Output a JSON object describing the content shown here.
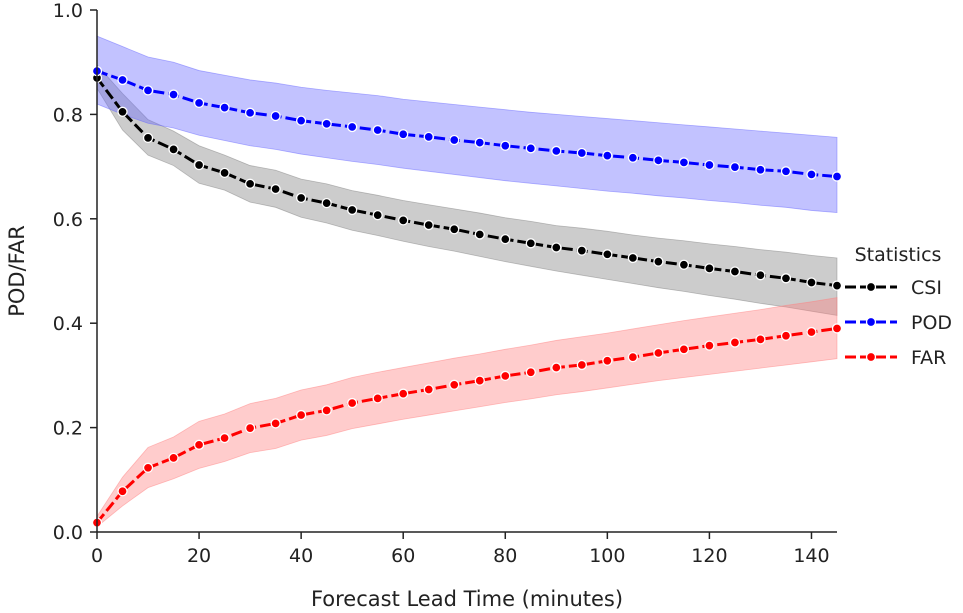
{
  "chart_data": {
    "type": "line",
    "title": "",
    "xlabel": "Forecast Lead Time (minutes)",
    "ylabel": "POD/FAR",
    "xlim": [
      0,
      145
    ],
    "ylim": [
      0.0,
      1.0
    ],
    "xticks": [
      0,
      20,
      40,
      60,
      80,
      100,
      120,
      140
    ],
    "yticks": [
      0.0,
      0.2,
      0.4,
      0.6,
      0.8,
      1.0
    ],
    "ytick_labels": [
      "0.0",
      "0.2",
      "0.4",
      "0.6",
      "0.8",
      "1.0"
    ],
    "grid": false,
    "legend": {
      "title": "Statistics",
      "placement": "right"
    },
    "x": [
      0,
      5,
      10,
      15,
      20,
      25,
      30,
      35,
      40,
      45,
      50,
      55,
      60,
      65,
      70,
      75,
      80,
      85,
      90,
      95,
      100,
      105,
      110,
      115,
      120,
      125,
      130,
      135,
      140,
      145
    ],
    "series": [
      {
        "name": "CSI",
        "color": "#000000",
        "band_color": "#808080",
        "values": [
          0.87,
          0.805,
          0.755,
          0.733,
          0.703,
          0.688,
          0.667,
          0.657,
          0.64,
          0.63,
          0.617,
          0.607,
          0.597,
          0.588,
          0.58,
          0.57,
          0.561,
          0.553,
          0.545,
          0.539,
          0.532,
          0.525,
          0.518,
          0.512,
          0.505,
          0.499,
          0.492,
          0.486,
          0.478,
          0.472
        ],
        "lower": [
          0.85,
          0.77,
          0.722,
          0.702,
          0.668,
          0.655,
          0.632,
          0.622,
          0.603,
          0.592,
          0.578,
          0.568,
          0.557,
          0.547,
          0.538,
          0.528,
          0.518,
          0.509,
          0.5,
          0.492,
          0.484,
          0.476,
          0.468,
          0.461,
          0.453,
          0.446,
          0.438,
          0.431,
          0.423,
          0.415
        ],
        "upper": [
          0.895,
          0.84,
          0.79,
          0.768,
          0.74,
          0.722,
          0.702,
          0.693,
          0.676,
          0.667,
          0.654,
          0.645,
          0.635,
          0.627,
          0.619,
          0.611,
          0.602,
          0.595,
          0.587,
          0.582,
          0.576,
          0.569,
          0.563,
          0.558,
          0.552,
          0.547,
          0.541,
          0.536,
          0.53,
          0.525
        ]
      },
      {
        "name": "POD",
        "color": "#0000ff",
        "band_color": "#6666ff",
        "values": [
          0.883,
          0.866,
          0.846,
          0.838,
          0.822,
          0.813,
          0.803,
          0.797,
          0.788,
          0.782,
          0.776,
          0.77,
          0.762,
          0.757,
          0.751,
          0.746,
          0.74,
          0.735,
          0.73,
          0.726,
          0.721,
          0.717,
          0.712,
          0.708,
          0.703,
          0.699,
          0.694,
          0.691,
          0.685,
          0.681
        ],
        "lower": [
          0.82,
          0.8,
          0.783,
          0.774,
          0.76,
          0.75,
          0.74,
          0.733,
          0.724,
          0.717,
          0.71,
          0.704,
          0.697,
          0.691,
          0.685,
          0.679,
          0.673,
          0.668,
          0.663,
          0.658,
          0.653,
          0.649,
          0.644,
          0.64,
          0.635,
          0.631,
          0.626,
          0.622,
          0.616,
          0.612
        ],
        "upper": [
          0.95,
          0.93,
          0.91,
          0.9,
          0.884,
          0.875,
          0.866,
          0.86,
          0.852,
          0.846,
          0.841,
          0.836,
          0.829,
          0.824,
          0.819,
          0.814,
          0.809,
          0.804,
          0.8,
          0.796,
          0.792,
          0.788,
          0.784,
          0.78,
          0.776,
          0.772,
          0.768,
          0.764,
          0.76,
          0.756
        ]
      },
      {
        "name": "FAR",
        "color": "#ff0000",
        "band_color": "#ff7f7f",
        "values": [
          0.018,
          0.078,
          0.123,
          0.142,
          0.167,
          0.18,
          0.199,
          0.208,
          0.224,
          0.233,
          0.247,
          0.256,
          0.265,
          0.273,
          0.282,
          0.29,
          0.299,
          0.306,
          0.315,
          0.32,
          0.328,
          0.335,
          0.343,
          0.35,
          0.357,
          0.363,
          0.369,
          0.376,
          0.383,
          0.39
        ],
        "lower": [
          0.01,
          0.05,
          0.085,
          0.102,
          0.122,
          0.135,
          0.152,
          0.16,
          0.176,
          0.185,
          0.198,
          0.207,
          0.216,
          0.224,
          0.232,
          0.24,
          0.248,
          0.255,
          0.263,
          0.269,
          0.276,
          0.283,
          0.29,
          0.296,
          0.302,
          0.308,
          0.314,
          0.32,
          0.326,
          0.332
        ],
        "upper": [
          0.03,
          0.105,
          0.162,
          0.182,
          0.212,
          0.226,
          0.246,
          0.256,
          0.272,
          0.282,
          0.296,
          0.306,
          0.315,
          0.324,
          0.333,
          0.341,
          0.35,
          0.358,
          0.367,
          0.374,
          0.381,
          0.389,
          0.397,
          0.405,
          0.412,
          0.419,
          0.426,
          0.434,
          0.441,
          0.449
        ]
      }
    ]
  }
}
